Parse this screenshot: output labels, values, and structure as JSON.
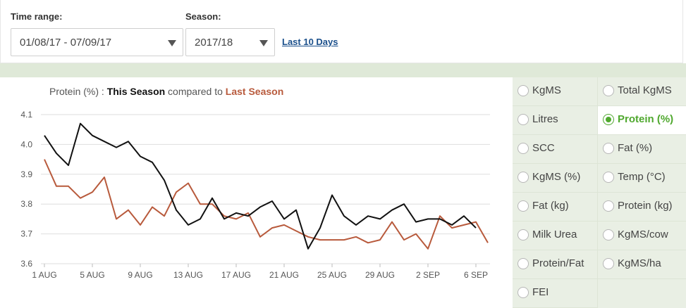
{
  "filters": {
    "time_range_label": "Time range:",
    "time_range_value": "01/08/17 - 07/09/17",
    "season_label": "Season:",
    "season_value": "2017/18",
    "last_days_link": "Last 10 Days"
  },
  "chart": {
    "title_metric": "Protein (%) : ",
    "title_this": "This Season",
    "title_mid": " compared to ",
    "title_last": "Last Season"
  },
  "metrics": [
    {
      "label": "KgMS",
      "selected": false
    },
    {
      "label": "Total KgMS",
      "selected": false
    },
    {
      "label": "Litres",
      "selected": false
    },
    {
      "label": "Protein (%)",
      "selected": true
    },
    {
      "label": "SCC",
      "selected": false
    },
    {
      "label": "Fat (%)",
      "selected": false
    },
    {
      "label": "KgMS (%)",
      "selected": false
    },
    {
      "label": "Temp (°C)",
      "selected": false
    },
    {
      "label": "Fat (kg)",
      "selected": false
    },
    {
      "label": "Protein (kg)",
      "selected": false
    },
    {
      "label": "Milk Urea",
      "selected": false
    },
    {
      "label": "KgMS/cow",
      "selected": false
    },
    {
      "label": "Protein/Fat",
      "selected": false
    },
    {
      "label": "KgMS/ha",
      "selected": false
    },
    {
      "label": "FEI",
      "selected": false
    }
  ],
  "chart_data": {
    "type": "line",
    "title": "Protein (%) : This Season compared to Last Season",
    "xlabel": "",
    "ylabel": "",
    "ylim": [
      3.6,
      4.1
    ],
    "yticks": [
      "3.6",
      "3.7",
      "3.8",
      "3.9",
      "4.0",
      "4.1"
    ],
    "xticks": [
      "1 AUG",
      "5 AUG",
      "9 AUG",
      "13 AUG",
      "17 AUG",
      "21 AUG",
      "25 AUG",
      "29 AUG",
      "2 SEP",
      "6 SEP"
    ],
    "grid": true,
    "series": [
      {
        "name": "This Season",
        "color": "#111111",
        "values": [
          4.03,
          3.97,
          3.93,
          4.07,
          4.03,
          4.01,
          3.99,
          4.01,
          3.96,
          3.94,
          3.88,
          3.78,
          3.73,
          3.75,
          3.82,
          3.75,
          3.77,
          3.76,
          3.79,
          3.81,
          3.75,
          3.78,
          3.65,
          3.72,
          3.83,
          3.76,
          3.73,
          3.76,
          3.75,
          3.78,
          3.8,
          3.74,
          3.75,
          3.75,
          3.73,
          3.76,
          3.72
        ]
      },
      {
        "name": "Last Season",
        "color": "#b85a3c",
        "values": [
          3.95,
          3.86,
          3.86,
          3.82,
          3.84,
          3.89,
          3.75,
          3.78,
          3.73,
          3.79,
          3.76,
          3.84,
          3.87,
          3.8,
          3.8,
          3.76,
          3.75,
          3.77,
          3.69,
          3.72,
          3.73,
          3.71,
          3.69,
          3.68,
          3.68,
          3.68,
          3.69,
          3.67,
          3.68,
          3.74,
          3.68,
          3.7,
          3.65,
          3.76,
          3.72,
          3.73,
          3.74,
          3.67
        ]
      }
    ]
  }
}
